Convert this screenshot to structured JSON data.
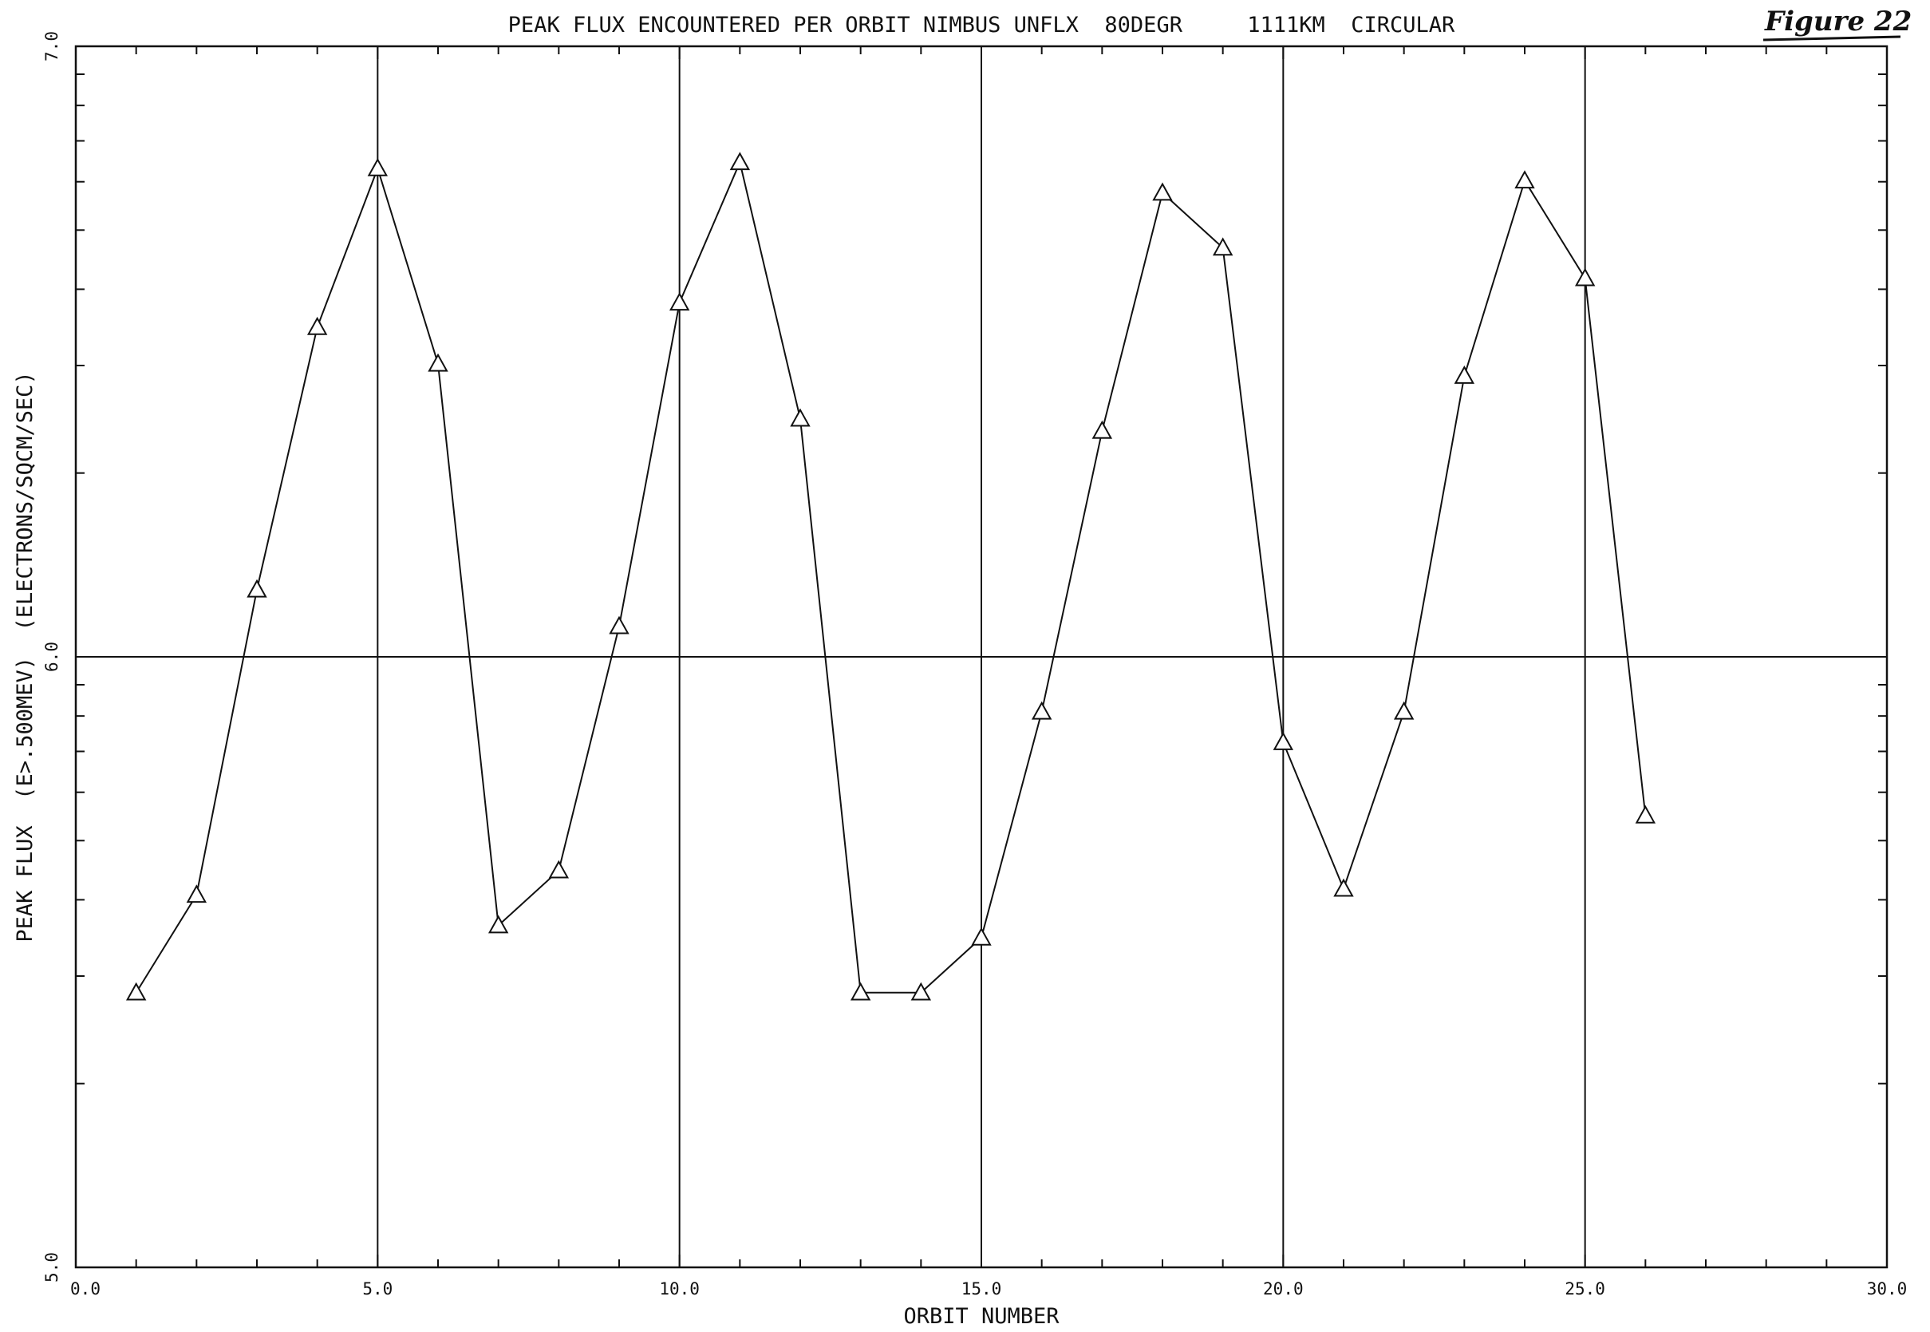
{
  "figure_label": "Figure 22",
  "chart_data": {
    "type": "line",
    "title": "PEAK FLUX ENCOUNTERED PER ORBIT NIMBUS UNFLX  80DEGR     1111KM  CIRCULAR",
    "xlabel": "ORBIT NUMBER",
    "ylabel": "PEAK FLUX  (E>.500MEV)  (ELECTRONS/SQCM/SEC)",
    "xlim": [
      0,
      30
    ],
    "ylim": [
      5,
      7
    ],
    "y_scale": "log (decades labeled 5.0, 6.0, 7.0)",
    "x_tick_labels": [
      "0.0",
      "5.0",
      "10.0",
      "15.0",
      "20.0",
      "25.0",
      "30.0"
    ],
    "y_tick_labels": [
      "5.0",
      "6.0",
      "7.0"
    ],
    "grid": "vertical lines at 5, 10, 15, 20, 25; horizontal line at 6.0",
    "marker": "triangle",
    "x": [
      1,
      2,
      3,
      4,
      5,
      6,
      7,
      8,
      9,
      10,
      11,
      12,
      13,
      14,
      15,
      16,
      17,
      18,
      19,
      20,
      21,
      22,
      23,
      24,
      25,
      26
    ],
    "y": [
      5.45,
      5.61,
      6.11,
      6.54,
      6.8,
      6.48,
      5.56,
      5.65,
      6.05,
      6.58,
      6.81,
      6.39,
      5.45,
      5.45,
      5.54,
      5.91,
      6.37,
      6.76,
      6.67,
      5.86,
      5.62,
      5.91,
      6.46,
      6.78,
      6.62,
      5.74
    ]
  }
}
